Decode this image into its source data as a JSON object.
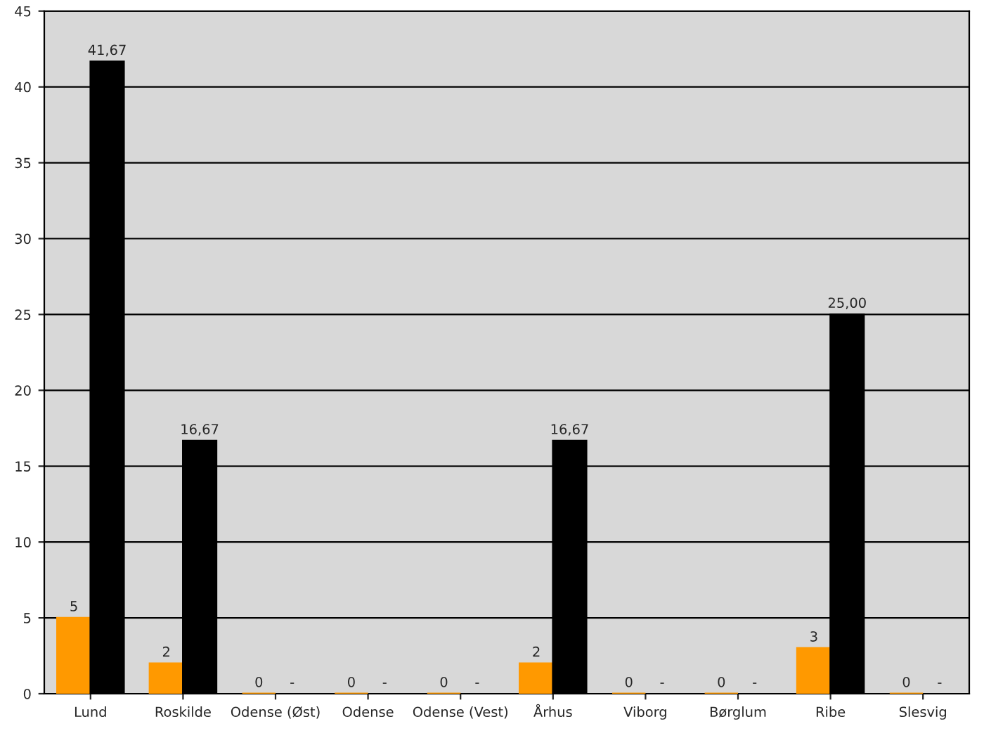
{
  "chart_data": {
    "type": "bar",
    "categories": [
      "Lund",
      "Roskilde",
      "Odense (Øst)",
      "Odense",
      "Odense (Vest)",
      "Århus",
      "Viborg",
      "Børglum",
      "Ribe",
      "Slesvig"
    ],
    "series": [
      {
        "color": "#ff9900",
        "values": [
          5,
          2,
          0,
          0,
          0,
          2,
          0,
          0,
          3,
          0
        ],
        "value_labels": [
          "5",
          "2",
          "0",
          "0",
          "0",
          "2",
          "0",
          "0",
          "3",
          "0"
        ]
      },
      {
        "color": "#000000",
        "values": [
          41.67,
          16.67,
          null,
          null,
          null,
          16.67,
          null,
          null,
          25.0,
          null
        ],
        "value_labels": [
          "41,67",
          "16,67",
          "-",
          "-",
          "-",
          "16,67",
          "-",
          "-",
          "25,00",
          "-"
        ]
      }
    ],
    "ylim": [
      0,
      45
    ],
    "yticks": [
      0,
      5,
      10,
      15,
      20,
      25,
      30,
      35,
      40,
      45
    ],
    "grid": "y",
    "legend": false
  }
}
